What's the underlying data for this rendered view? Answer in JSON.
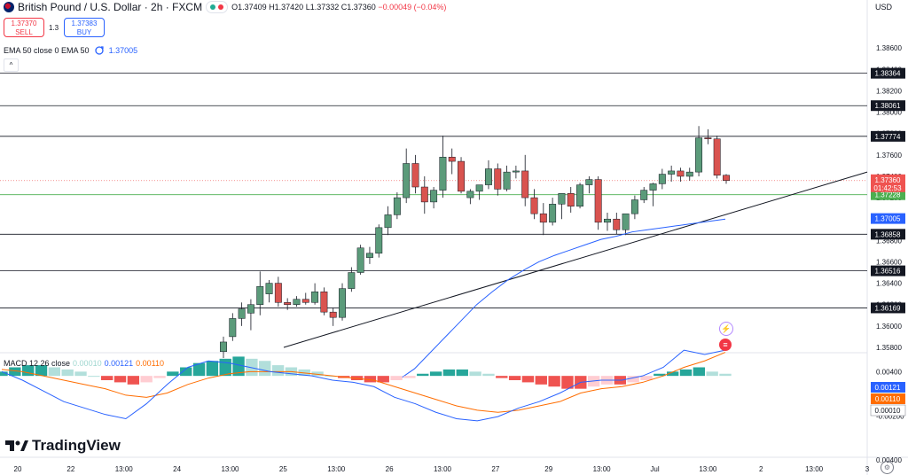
{
  "header": {
    "title": "British Pound / U.S. Dollar · 2h · FXCM",
    "open": "O1.37409",
    "high": "H1.37420",
    "low": "L1.37332",
    "close": "C1.37360",
    "change": "−0.00049 (−0.04%)"
  },
  "trade": {
    "sell_price": "1.37370",
    "sell_label": "SELL",
    "spread": "1.3",
    "buy_price": "1.37383",
    "buy_label": "BUY"
  },
  "ema_legend": {
    "label": "EMA 50 close 0 EMA 50",
    "value": "1.37005"
  },
  "macd_legend": {
    "label": "MACD 12 26 close",
    "hist": "0.00010",
    "macd": "0.00121",
    "signal": "0.00110"
  },
  "currency_label": "USD",
  "brand": "TradingView",
  "colors": {
    "up": "#5b9b7a",
    "down": "#d9534f",
    "ema": "#2962ff",
    "signal": "#ff6d00",
    "hist_pos_strong": "#26a69a",
    "hist_pos_weak": "#b2dfdb",
    "hist_neg_strong": "#ef5350",
    "hist_neg_weak": "#ffcdd2"
  },
  "icons": [
    "collapse-arrow-icon",
    "flash-icon",
    "us-flag-icon",
    "settings-icon",
    "tradingview-logo-icon"
  ],
  "chart_data": {
    "type": "candlestick",
    "price_axis": {
      "range": [
        1.3575,
        1.389
      ],
      "ticks": [
        "1.38600",
        "1.38400",
        "1.38200",
        "1.38000",
        "1.37800",
        "1.37600",
        "1.37400",
        "1.37200",
        "1.37000",
        "1.36800",
        "1.36600",
        "1.36400",
        "1.36200",
        "1.36000",
        "1.35800"
      ]
    },
    "time_axis": {
      "ticks": [
        "20",
        "22",
        "13:00",
        "24",
        "13:00",
        "25",
        "13:00",
        "26",
        "13:00",
        "27",
        "29",
        "13:00",
        "Jul",
        "13:00",
        "2",
        "13:00",
        "3"
      ]
    },
    "horizontal_levels": [
      "1.38364",
      "1.38061",
      "1.37774",
      "1.36858",
      "1.36516",
      "1.36169"
    ],
    "support_level": "1.37228",
    "current_price": "1.37360",
    "countdown": "01:42:53",
    "ema_value": "1.37005",
    "candles": [
      {
        "o": 1.3576,
        "h": 1.359,
        "l": 1.357,
        "c": 1.3585
      },
      {
        "o": 1.359,
        "h": 1.3612,
        "l": 1.3586,
        "c": 1.3607
      },
      {
        "o": 1.3607,
        "h": 1.3622,
        "l": 1.36,
        "c": 1.3616
      },
      {
        "o": 1.3612,
        "h": 1.3625,
        "l": 1.3596,
        "c": 1.362
      },
      {
        "o": 1.362,
        "h": 1.3651,
        "l": 1.361,
        "c": 1.3637
      },
      {
        "o": 1.363,
        "h": 1.3643,
        "l": 1.3622,
        "c": 1.364
      },
      {
        "o": 1.364,
        "h": 1.3646,
        "l": 1.3618,
        "c": 1.3622
      },
      {
        "o": 1.3622,
        "h": 1.3626,
        "l": 1.3615,
        "c": 1.362
      },
      {
        "o": 1.362,
        "h": 1.3628,
        "l": 1.3618,
        "c": 1.3625
      },
      {
        "o": 1.3625,
        "h": 1.3631,
        "l": 1.362,
        "c": 1.3622
      },
      {
        "o": 1.3622,
        "h": 1.364,
        "l": 1.362,
        "c": 1.3632
      },
      {
        "o": 1.3632,
        "h": 1.3636,
        "l": 1.361,
        "c": 1.3613
      },
      {
        "o": 1.3613,
        "h": 1.3617,
        "l": 1.36,
        "c": 1.3608
      },
      {
        "o": 1.3608,
        "h": 1.364,
        "l": 1.3605,
        "c": 1.3635
      },
      {
        "o": 1.3635,
        "h": 1.3655,
        "l": 1.3632,
        "c": 1.365
      },
      {
        "o": 1.365,
        "h": 1.3676,
        "l": 1.3648,
        "c": 1.3673
      },
      {
        "o": 1.3664,
        "h": 1.3674,
        "l": 1.3658,
        "c": 1.3668
      },
      {
        "o": 1.3668,
        "h": 1.3695,
        "l": 1.3664,
        "c": 1.3692
      },
      {
        "o": 1.3692,
        "h": 1.3712,
        "l": 1.3685,
        "c": 1.3704
      },
      {
        "o": 1.3704,
        "h": 1.3725,
        "l": 1.37,
        "c": 1.372
      },
      {
        "o": 1.372,
        "h": 1.3766,
        "l": 1.3715,
        "c": 1.3752
      },
      {
        "o": 1.3752,
        "h": 1.376,
        "l": 1.3724,
        "c": 1.373
      },
      {
        "o": 1.373,
        "h": 1.374,
        "l": 1.3705,
        "c": 1.3716
      },
      {
        "o": 1.3716,
        "h": 1.373,
        "l": 1.371,
        "c": 1.3727
      },
      {
        "o": 1.3727,
        "h": 1.3778,
        "l": 1.372,
        "c": 1.3758
      },
      {
        "o": 1.3758,
        "h": 1.3766,
        "l": 1.3742,
        "c": 1.3754
      },
      {
        "o": 1.3754,
        "h": 1.3758,
        "l": 1.3724,
        "c": 1.3726
      },
      {
        "o": 1.372,
        "h": 1.3728,
        "l": 1.3714,
        "c": 1.3726
      },
      {
        "o": 1.3726,
        "h": 1.373,
        "l": 1.3718,
        "c": 1.3732
      },
      {
        "o": 1.3732,
        "h": 1.3755,
        "l": 1.3728,
        "c": 1.3747
      },
      {
        "o": 1.3747,
        "h": 1.3752,
        "l": 1.3722,
        "c": 1.3728
      },
      {
        "o": 1.3728,
        "h": 1.375,
        "l": 1.3726,
        "c": 1.3744
      },
      {
        "o": 1.3744,
        "h": 1.375,
        "l": 1.3738,
        "c": 1.3745
      },
      {
        "o": 1.3745,
        "h": 1.376,
        "l": 1.3712,
        "c": 1.372
      },
      {
        "o": 1.372,
        "h": 1.3728,
        "l": 1.37,
        "c": 1.3705
      },
      {
        "o": 1.3705,
        "h": 1.3715,
        "l": 1.3685,
        "c": 1.3697
      },
      {
        "o": 1.3697,
        "h": 1.372,
        "l": 1.3694,
        "c": 1.3714
      },
      {
        "o": 1.3714,
        "h": 1.3724,
        "l": 1.37,
        "c": 1.3724
      },
      {
        "o": 1.3724,
        "h": 1.373,
        "l": 1.3706,
        "c": 1.3712
      },
      {
        "o": 1.3712,
        "h": 1.3734,
        "l": 1.371,
        "c": 1.3732
      },
      {
        "o": 1.3732,
        "h": 1.374,
        "l": 1.3724,
        "c": 1.3737
      },
      {
        "o": 1.3737,
        "h": 1.374,
        "l": 1.369,
        "c": 1.3697
      },
      {
        "o": 1.3697,
        "h": 1.3706,
        "l": 1.3689,
        "c": 1.37
      },
      {
        "o": 1.37,
        "h": 1.3706,
        "l": 1.3686,
        "c": 1.369
      },
      {
        "o": 1.369,
        "h": 1.3704,
        "l": 1.3685,
        "c": 1.3705
      },
      {
        "o": 1.3705,
        "h": 1.3722,
        "l": 1.37,
        "c": 1.3718
      },
      {
        "o": 1.3718,
        "h": 1.373,
        "l": 1.3715,
        "c": 1.3727
      },
      {
        "o": 1.3727,
        "h": 1.3734,
        "l": 1.3712,
        "c": 1.3733
      },
      {
        "o": 1.3733,
        "h": 1.3747,
        "l": 1.3728,
        "c": 1.3742
      },
      {
        "o": 1.3742,
        "h": 1.375,
        "l": 1.3735,
        "c": 1.3745
      },
      {
        "o": 1.3745,
        "h": 1.3748,
        "l": 1.3735,
        "c": 1.374
      },
      {
        "o": 1.374,
        "h": 1.3748,
        "l": 1.3736,
        "c": 1.3744
      },
      {
        "o": 1.3744,
        "h": 1.3787,
        "l": 1.374,
        "c": 1.3776
      },
      {
        "o": 1.3776,
        "h": 1.3784,
        "l": 1.377,
        "c": 1.3775
      },
      {
        "o": 1.3775,
        "h": 1.3778,
        "l": 1.3738,
        "c": 1.3741
      },
      {
        "o": 1.3741,
        "h": 1.3742,
        "l": 1.3733,
        "c": 1.3736
      }
    ],
    "ema_line": [
      1.355,
      1.356,
      1.3575,
      1.359,
      1.3605,
      1.362,
      1.3632,
      1.3643,
      1.3652,
      1.366,
      1.3666,
      1.3671,
      1.3676,
      1.3681,
      1.3684,
      1.3688,
      1.369,
      1.3692,
      1.3694,
      1.3696,
      1.3698,
      1.37
    ],
    "trendline": {
      "from": 1.358,
      "to": 1.3744
    },
    "macd_axis": {
      "range": [
        -0.0038,
        0.001
      ],
      "ticks": [
        "0.00400",
        "-0.00200",
        "0.00400"
      ]
    },
    "macd_labels": [
      "0.00121",
      "0.00110",
      "0.00010"
    ],
    "macd_line": [
      0.0002,
      -0.0002,
      -0.0007,
      -0.0012,
      -0.0015,
      -0.0018,
      -0.002,
      -0.0013,
      -0.0004,
      0.0004,
      0.0007,
      0.0006,
      0.0004,
      0.0002,
      0.0001,
      0.0,
      -0.0002,
      -0.0003,
      -0.0005,
      -0.001,
      -0.0013,
      -0.0017,
      -0.002,
      -0.0021,
      -0.0019,
      -0.0015,
      -0.0012,
      -0.0008,
      -0.0003,
      -0.0002,
      -0.0002,
      0.0,
      0.0004,
      0.0012,
      0.001,
      0.0012
    ],
    "signal_line": [
      0.0003,
      0.0002,
      0.0,
      -0.0002,
      -0.0004,
      -0.0006,
      -0.0009,
      -0.001,
      -0.0008,
      -0.0004,
      -0.0001,
      0.0001,
      0.0002,
      0.0002,
      0.0002,
      0.0001,
      0.0,
      -0.0001,
      -0.0002,
      -0.0005,
      -0.0008,
      -0.0011,
      -0.0014,
      -0.0016,
      -0.0017,
      -0.0016,
      -0.0014,
      -0.0012,
      -0.0008,
      -0.0006,
      -0.0005,
      -0.0003,
      0.0,
      0.0004,
      0.0007,
      0.0011
    ],
    "histogram": [
      0.0002,
      0.0004,
      0.0005,
      0.0005,
      0.0004,
      0.0003,
      0.0002,
      0.0,
      -0.0002,
      -0.0003,
      -0.0004,
      -0.0003,
      -0.0001,
      0.0002,
      0.0004,
      0.0006,
      0.0007,
      0.0008,
      0.0009,
      0.0008,
      0.0007,
      0.0005,
      0.0004,
      0.0003,
      0.0002,
      0.0,
      -0.0001,
      -0.0002,
      -0.0003,
      -0.0003,
      -0.0002,
      -0.0001,
      0.0001,
      0.0002,
      0.0003,
      0.0003,
      0.0002,
      0.0001,
      -0.0001,
      -0.0002,
      -0.0003,
      -0.0004,
      -0.0005,
      -0.0006,
      -0.0006,
      -0.0005,
      -0.0004,
      -0.0004,
      -0.0003,
      -0.0002,
      0.0001,
      0.0002,
      0.0003,
      0.0004,
      0.0002,
      0.0001
    ]
  }
}
